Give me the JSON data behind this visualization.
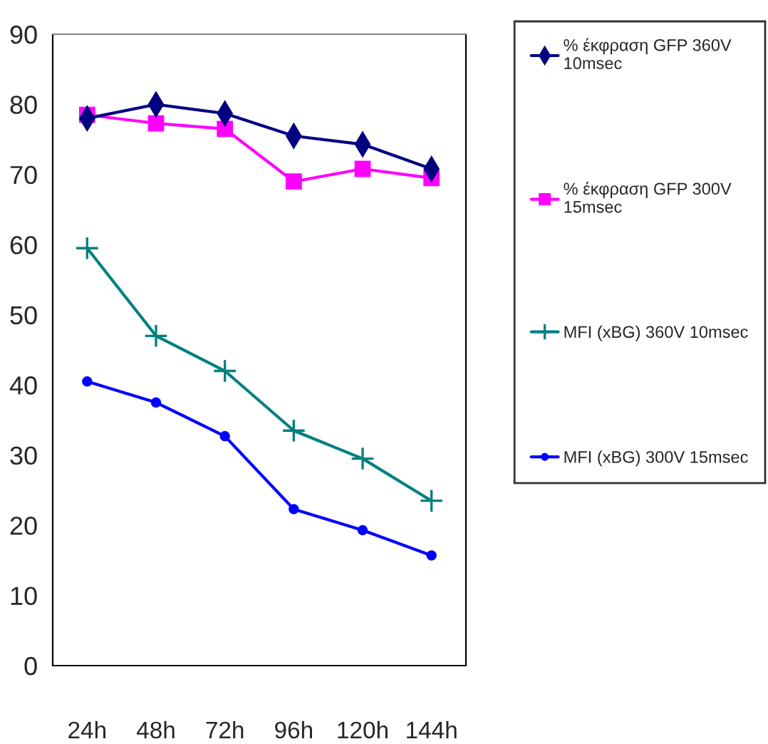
{
  "chart_data": {
    "type": "line",
    "categories": [
      "24h",
      "48h",
      "72h",
      "96h",
      "120h",
      "144h"
    ],
    "series": [
      {
        "name": "% έκφραση GFP 360V\n10msec",
        "color": "#000080",
        "marker": "diamond",
        "values": [
          78,
          80,
          78.7,
          75.5,
          74.3,
          70.8
        ]
      },
      {
        "name": "% έκφραση GFP 300V\n15msec",
        "color": "#ff00ff",
        "marker": "square",
        "values": [
          78.5,
          77.3,
          76.5,
          69,
          70.8,
          69.5
        ]
      },
      {
        "name": "MFI (xBG) 360V 10msec",
        "color": "#008080",
        "marker": "cross",
        "values": [
          59.5,
          47,
          42,
          33.5,
          29.5,
          23.5
        ]
      },
      {
        "name": "MFI (xBG) 300V 15msec",
        "color": "#0000ff",
        "marker": "circle",
        "values": [
          40.5,
          37.5,
          32.7,
          22.3,
          19.3,
          15.7
        ]
      }
    ],
    "ylim": [
      0,
      90
    ],
    "yticks": [
      0,
      10,
      20,
      30,
      40,
      50,
      60,
      70,
      80,
      90
    ],
    "grid": false,
    "legend": "right"
  }
}
